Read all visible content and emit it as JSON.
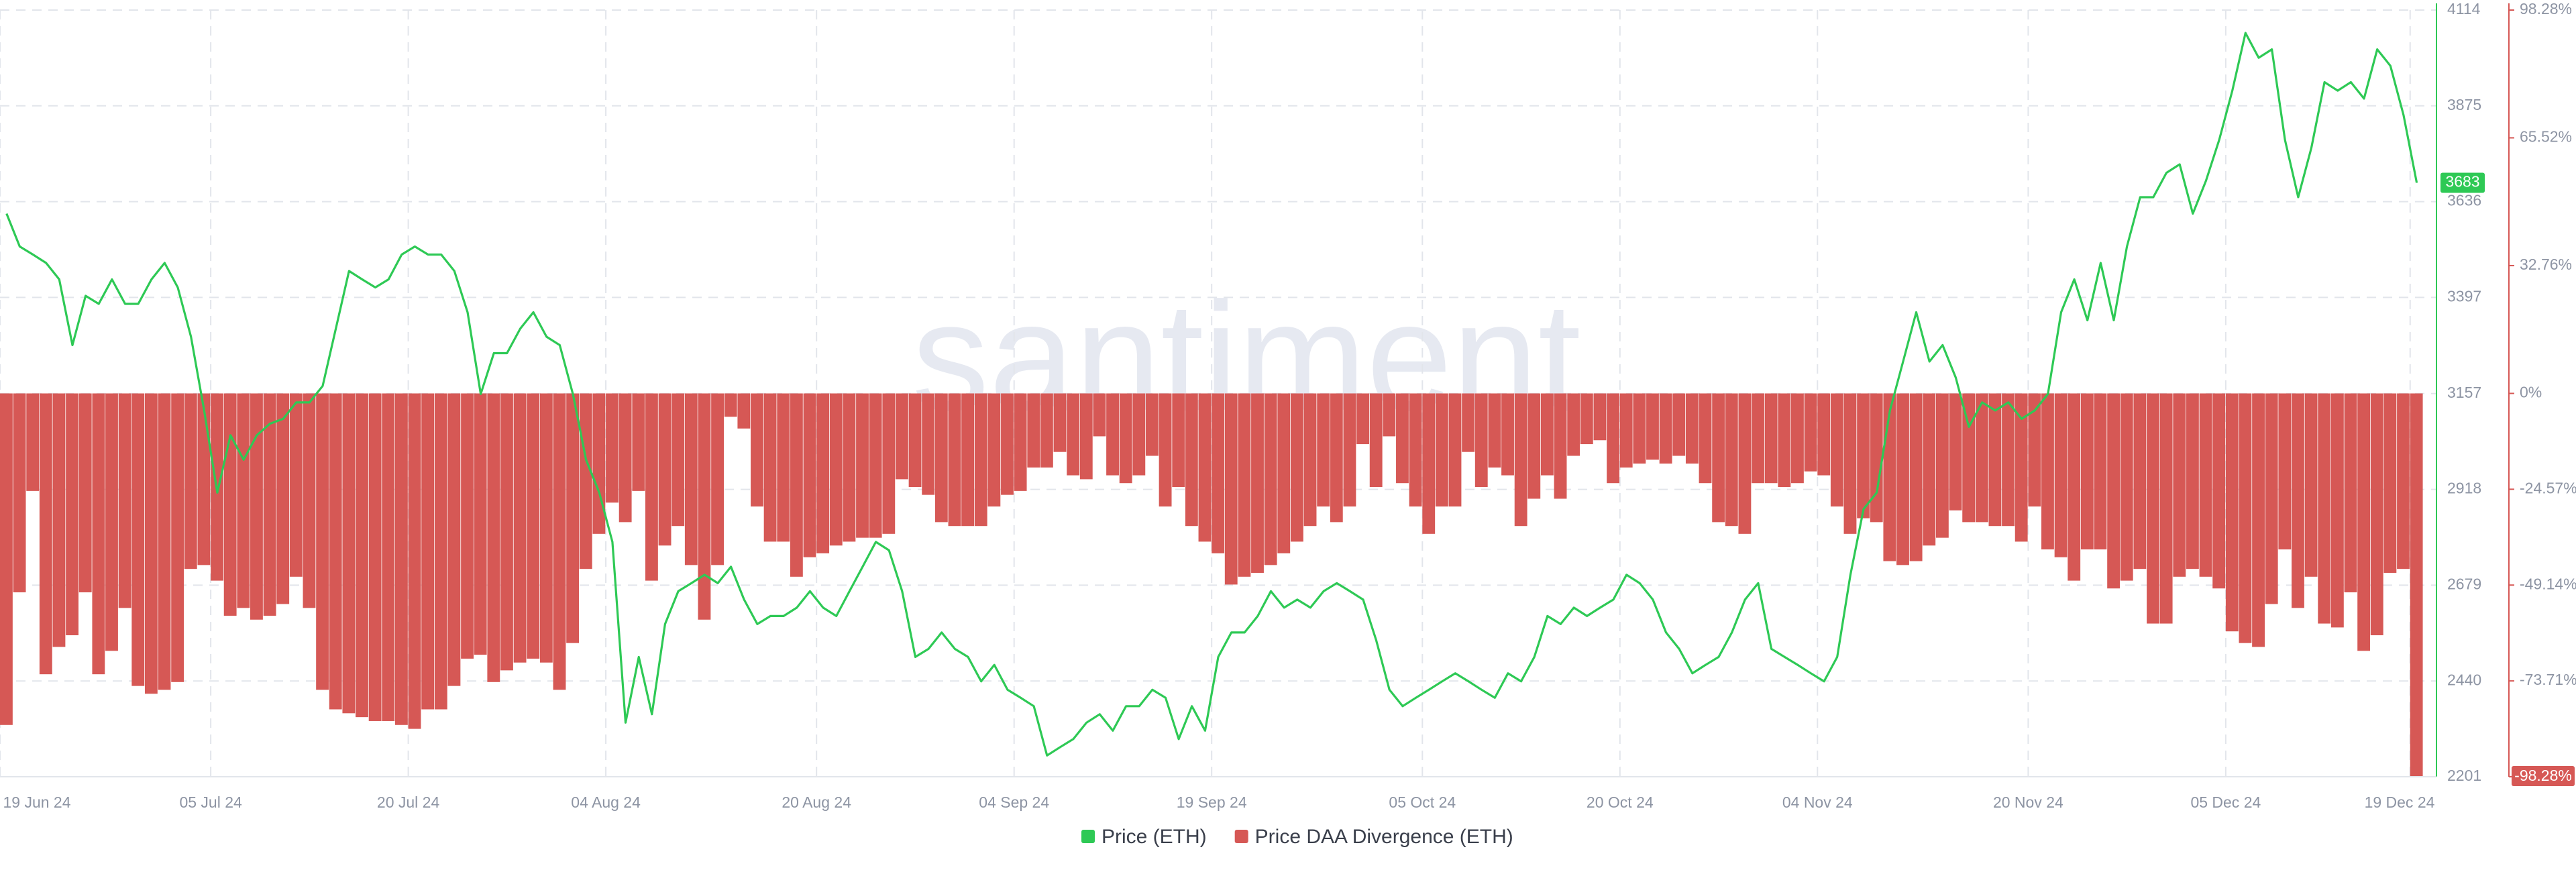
{
  "chart_data": {
    "type": "combo",
    "watermark": "santiment.",
    "x": [
      "2024-06-19",
      "2024-06-20",
      "2024-06-21",
      "2024-06-22",
      "2024-06-23",
      "2024-06-24",
      "2024-06-25",
      "2024-06-26",
      "2024-06-27",
      "2024-06-28",
      "2024-06-29",
      "2024-06-30",
      "2024-07-01",
      "2024-07-02",
      "2024-07-03",
      "2024-07-04",
      "2024-07-05",
      "2024-07-06",
      "2024-07-07",
      "2024-07-08",
      "2024-07-09",
      "2024-07-10",
      "2024-07-11",
      "2024-07-12",
      "2024-07-13",
      "2024-07-14",
      "2024-07-15",
      "2024-07-16",
      "2024-07-17",
      "2024-07-18",
      "2024-07-19",
      "2024-07-20",
      "2024-07-21",
      "2024-07-22",
      "2024-07-23",
      "2024-07-24",
      "2024-07-25",
      "2024-07-26",
      "2024-07-27",
      "2024-07-28",
      "2024-07-29",
      "2024-07-30",
      "2024-07-31",
      "2024-08-01",
      "2024-08-02",
      "2024-08-03",
      "2024-08-04",
      "2024-08-05",
      "2024-08-06",
      "2024-08-07",
      "2024-08-08",
      "2024-08-09",
      "2024-08-10",
      "2024-08-11",
      "2024-08-12",
      "2024-08-13",
      "2024-08-14",
      "2024-08-15",
      "2024-08-16",
      "2024-08-17",
      "2024-08-18",
      "2024-08-19",
      "2024-08-20",
      "2024-08-21",
      "2024-08-22",
      "2024-08-23",
      "2024-08-24",
      "2024-08-25",
      "2024-08-26",
      "2024-08-27",
      "2024-08-28",
      "2024-08-29",
      "2024-08-30",
      "2024-08-31",
      "2024-09-01",
      "2024-09-02",
      "2024-09-03",
      "2024-09-04",
      "2024-09-05",
      "2024-09-06",
      "2024-09-07",
      "2024-09-08",
      "2024-09-09",
      "2024-09-10",
      "2024-09-11",
      "2024-09-12",
      "2024-09-13",
      "2024-09-14",
      "2024-09-15",
      "2024-09-16",
      "2024-09-17",
      "2024-09-18",
      "2024-09-19",
      "2024-09-20",
      "2024-09-21",
      "2024-09-22",
      "2024-09-23",
      "2024-09-24",
      "2024-09-25",
      "2024-09-26",
      "2024-09-27",
      "2024-09-28",
      "2024-09-29",
      "2024-09-30",
      "2024-10-01",
      "2024-10-02",
      "2024-10-03",
      "2024-10-04",
      "2024-10-05",
      "2024-10-06",
      "2024-10-07",
      "2024-10-08",
      "2024-10-09",
      "2024-10-10",
      "2024-10-11",
      "2024-10-12",
      "2024-10-13",
      "2024-10-14",
      "2024-10-15",
      "2024-10-16",
      "2024-10-17",
      "2024-10-18",
      "2024-10-19",
      "2024-10-20",
      "2024-10-21",
      "2024-10-22",
      "2024-10-23",
      "2024-10-24",
      "2024-10-25",
      "2024-10-26",
      "2024-10-27",
      "2024-10-28",
      "2024-10-29",
      "2024-10-30",
      "2024-10-31",
      "2024-11-01",
      "2024-11-02",
      "2024-11-03",
      "2024-11-04",
      "2024-11-05",
      "2024-11-06",
      "2024-11-07",
      "2024-11-08",
      "2024-11-09",
      "2024-11-10",
      "2024-11-11",
      "2024-11-12",
      "2024-11-13",
      "2024-11-14",
      "2024-11-15",
      "2024-11-16",
      "2024-11-17",
      "2024-11-18",
      "2024-11-19",
      "2024-11-20",
      "2024-11-21",
      "2024-11-22",
      "2024-11-23",
      "2024-11-24",
      "2024-11-25",
      "2024-11-26",
      "2024-11-27",
      "2024-11-28",
      "2024-11-29",
      "2024-11-30",
      "2024-12-01",
      "2024-12-02",
      "2024-12-03",
      "2024-12-04",
      "2024-12-05",
      "2024-12-06",
      "2024-12-07",
      "2024-12-08",
      "2024-12-09",
      "2024-12-10",
      "2024-12-11",
      "2024-12-12",
      "2024-12-13",
      "2024-12-14",
      "2024-12-15",
      "2024-12-16",
      "2024-12-17",
      "2024-12-18",
      "2024-12-19"
    ],
    "series": [
      {
        "name": "Price (ETH)",
        "type": "line",
        "color": "#2ec955",
        "values": [
          3606,
          3524,
          3504,
          3483,
          3442,
          3278,
          3401,
          3381,
          3442,
          3381,
          3381,
          3442,
          3483,
          3422,
          3299,
          3115,
          2910,
          3053,
          2992,
          3053,
          3082,
          3094,
          3135,
          3135,
          3176,
          3319,
          3463,
          3442,
          3422,
          3442,
          3504,
          3524,
          3504,
          3504,
          3463,
          3360,
          3156,
          3258,
          3258,
          3319,
          3360,
          3299,
          3278,
          3156,
          2992,
          2910,
          2787,
          2336,
          2500,
          2357,
          2582,
          2664,
          2684,
          2705,
          2684,
          2725,
          2643,
          2582,
          2602,
          2602,
          2623,
          2664,
          2623,
          2602,
          2664,
          2725,
          2787,
          2766,
          2664,
          2500,
          2520,
          2561,
          2520,
          2500,
          2439,
          2480,
          2418,
          2398,
          2377,
          2254,
          2275,
          2295,
          2336,
          2357,
          2316,
          2377,
          2377,
          2418,
          2398,
          2295,
          2377,
          2316,
          2500,
          2561,
          2561,
          2602,
          2664,
          2623,
          2643,
          2623,
          2664,
          2684,
          2664,
          2643,
          2541,
          2418,
          2377,
          2398,
          2418,
          2439,
          2459,
          2439,
          2418,
          2398,
          2459,
          2439,
          2500,
          2602,
          2582,
          2623,
          2602,
          2623,
          2643,
          2705,
          2684,
          2643,
          2561,
          2520,
          2459,
          2480,
          2500,
          2561,
          2643,
          2684,
          2520,
          2500,
          2480,
          2459,
          2439,
          2500,
          2705,
          2869,
          2910,
          3115,
          3237,
          3360,
          3237,
          3278,
          3197,
          3074,
          3135,
          3115,
          3135,
          3094,
          3115,
          3156,
          3360,
          3442,
          3340,
          3483,
          3340,
          3524,
          3647,
          3647,
          3708,
          3729,
          3606,
          3688,
          3790,
          3913,
          4057,
          3995,
          4016,
          3790,
          3647,
          3770,
          3934,
          3913,
          3934,
          3893,
          4016,
          3975,
          3852,
          3683
        ]
      },
      {
        "name": "Price DAA Divergence (ETH)",
        "type": "bar",
        "axis": "y2",
        "color": "#d65855",
        "values": [
          -85,
          -51,
          -25,
          -72,
          -65,
          -62,
          -51,
          -72,
          -66,
          -55,
          -75,
          -77,
          -76,
          -74,
          -45,
          -44,
          -48,
          -57,
          -55,
          -58,
          -57,
          -54,
          -47,
          -55,
          -76,
          -81,
          -82,
          -83,
          -84,
          -84,
          -85,
          -86,
          -81,
          -81,
          -75,
          -68,
          -67,
          -74,
          -71,
          -69,
          -68,
          -69,
          -76,
          -64,
          -45,
          -36,
          -28,
          -33,
          -25,
          -48,
          -39,
          -34,
          -44,
          -58,
          -44,
          -6,
          -9,
          -29,
          -38,
          -38,
          -47,
          -42,
          -41,
          -39,
          -38,
          -37,
          -37,
          -36,
          -22,
          -24,
          -26,
          -33,
          -34,
          -34,
          -34,
          -29,
          -26,
          -25,
          -19,
          -19,
          -15,
          -21,
          -22,
          -11,
          -21,
          -23,
          -21,
          -16,
          -29,
          -24,
          -34,
          -38,
          -41,
          -49,
          -47,
          -46,
          -44,
          -41,
          -38,
          -34,
          -29,
          -33,
          -29,
          -13,
          -24,
          -11,
          -23,
          -29,
          -36,
          -29,
          -29,
          -15,
          -24,
          -19,
          -21,
          -34,
          -27,
          -21,
          -27,
          -16,
          -13,
          -12,
          -23,
          -19,
          -18,
          -17,
          -18,
          -16,
          -18,
          -23,
          -33,
          -34,
          -36,
          -23,
          -23,
          -24,
          -23,
          -20,
          -21,
          -29,
          -36,
          -32,
          -33,
          -43,
          -44,
          -43,
          -39,
          -37,
          -30,
          -33,
          -33,
          -34,
          -34,
          -38,
          -29,
          -40,
          -42,
          -48,
          -40,
          -40,
          -50,
          -48,
          -45,
          -59,
          -59,
          -47,
          -45,
          -47,
          -50,
          -61,
          -64,
          -65,
          -54,
          -40,
          -55,
          -47,
          -59,
          -60,
          -51,
          -66,
          -62,
          -46,
          -45,
          -98.28
        ]
      }
    ],
    "xlim": [
      "2024-06-19",
      "2024-12-21"
    ],
    "xticks": [
      {
        "value": "2024-06-19",
        "label": "19 Jun 24"
      },
      {
        "value": "2024-07-05",
        "label": "05 Jul 24"
      },
      {
        "value": "2024-07-20",
        "label": "20 Jul 24"
      },
      {
        "value": "2024-08-04",
        "label": "04 Aug 24"
      },
      {
        "value": "2024-08-20",
        "label": "20 Aug 24"
      },
      {
        "value": "2024-09-04",
        "label": "04 Sep 24"
      },
      {
        "value": "2024-09-19",
        "label": "19 Sep 24"
      },
      {
        "value": "2024-10-05",
        "label": "05 Oct 24"
      },
      {
        "value": "2024-10-20",
        "label": "20 Oct 24"
      },
      {
        "value": "2024-11-04",
        "label": "04 Nov 24"
      },
      {
        "value": "2024-11-20",
        "label": "20 Nov 24"
      },
      {
        "value": "2024-12-05",
        "label": "05 Dec 24"
      },
      {
        "value": "2024-12-19",
        "label": "19 Dec 24"
      }
    ],
    "ylim": [
      2201,
      4114
    ],
    "yticks": [
      2201,
      2440,
      2679,
      2918,
      3157,
      3397,
      3636,
      3875,
      4114
    ],
    "y2lim": [
      -98.28,
      98.28
    ],
    "y2ticks": [
      {
        "value": -98.28,
        "label": "-98.28%"
      },
      {
        "value": -73.71,
        "label": "-73.71%"
      },
      {
        "value": -49.14,
        "label": "-49.14%"
      },
      {
        "value": -24.57,
        "label": "-24.57%"
      },
      {
        "value": 0,
        "label": "0%"
      },
      {
        "value": 32.76,
        "label": "32.76%"
      },
      {
        "value": 65.52,
        "label": "65.52%"
      },
      {
        "value": 98.28,
        "label": "98.28%"
      }
    ],
    "grid": true,
    "legend": "bottom"
  }
}
